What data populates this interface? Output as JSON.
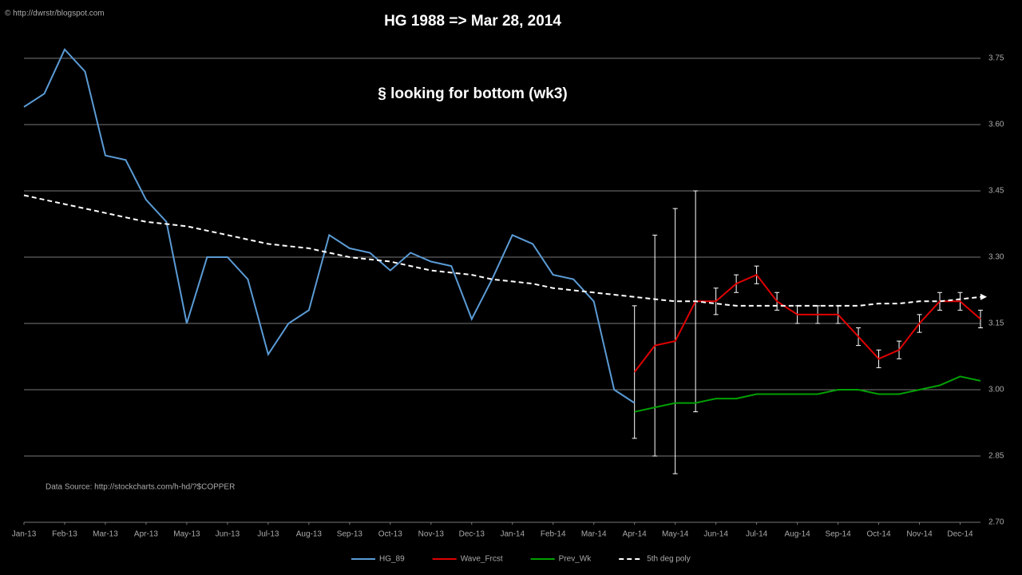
{
  "chart_data": {
    "type": "line",
    "title": "HG 1988 => Mar 28, 2014",
    "subtitle": "§ looking for bottom (wk3)",
    "annotations": [
      "© http://dwrstr/blogspot.com",
      "Data Source: http://stockcharts.com/h-hd/?$COPPER"
    ],
    "x": [
      0,
      0.5,
      1,
      1.5,
      2,
      2.5,
      3,
      3.5,
      4,
      4.5,
      5,
      5.5,
      6,
      6.5,
      7,
      7.5,
      8,
      8.5,
      9,
      9.5,
      10,
      10.5,
      11,
      11.5,
      12,
      12.5,
      13,
      13.5,
      14,
      14.5,
      15,
      15.5,
      16,
      16.5,
      17,
      17.5,
      18,
      18.5,
      19,
      19.5,
      20,
      20.5,
      21,
      21.5,
      22,
      22.5,
      23,
      23.5
    ],
    "xlim": [
      0,
      23.5
    ],
    "xticks": [
      {
        "value": 0,
        "label": "Jan-13"
      },
      {
        "value": 1,
        "label": "Feb-13"
      },
      {
        "value": 2,
        "label": "Mar-13"
      },
      {
        "value": 3,
        "label": "Apr-13"
      },
      {
        "value": 4,
        "label": "May-13"
      },
      {
        "value": 5,
        "label": "Jun-13"
      },
      {
        "value": 6,
        "label": "Jul-13"
      },
      {
        "value": 7,
        "label": "Aug-13"
      },
      {
        "value": 8,
        "label": "Sep-13"
      },
      {
        "value": 9,
        "label": "Oct-13"
      },
      {
        "value": 10,
        "label": "Nov-13"
      },
      {
        "value": 11,
        "label": "Dec-13"
      },
      {
        "value": 12,
        "label": "Jan-14"
      },
      {
        "value": 13,
        "label": "Feb-14"
      },
      {
        "value": 14,
        "label": "Mar-14"
      },
      {
        "value": 15,
        "label": "Apr-14"
      },
      {
        "value": 16,
        "label": "May-14"
      },
      {
        "value": 17,
        "label": "Jun-14"
      },
      {
        "value": 18,
        "label": "Jul-14"
      },
      {
        "value": 19,
        "label": "Aug-14"
      },
      {
        "value": 20,
        "label": "Sep-14"
      },
      {
        "value": 21,
        "label": "Oct-14"
      },
      {
        "value": 22,
        "label": "Nov-14"
      },
      {
        "value": 23,
        "label": "Dec-14"
      }
    ],
    "ylim": [
      2.7,
      3.75
    ],
    "yticks": [
      {
        "value": 2.7,
        "label": "2.70"
      },
      2.85,
      {
        "value": 3.0,
        "label": "3.00"
      },
      3.15,
      {
        "value": 3.3,
        "label": "3.30"
      },
      3.45,
      {
        "value": 3.6,
        "label": "3.60"
      },
      3.75
    ],
    "grid": true,
    "legend": "bottom",
    "series": [
      {
        "name": "HG_89",
        "color": "#5b9bd5",
        "values": [
          3.64,
          3.67,
          3.77,
          3.72,
          3.53,
          3.52,
          3.43,
          3.38,
          3.15,
          3.3,
          3.3,
          3.25,
          3.08,
          3.15,
          3.18,
          3.35,
          3.32,
          3.31,
          3.27,
          3.31,
          3.29,
          3.28,
          3.16,
          3.25,
          3.35,
          3.33,
          3.26,
          3.25,
          3.2,
          3.0,
          2.97,
          null,
          null,
          null,
          null,
          null,
          null,
          null,
          null,
          null,
          null,
          null,
          null,
          null,
          null,
          null,
          null,
          null
        ]
      },
      {
        "name": "Wave_Frcst",
        "color": "#e00000",
        "values": [
          null,
          null,
          null,
          null,
          null,
          null,
          null,
          null,
          null,
          null,
          null,
          null,
          null,
          null,
          null,
          null,
          null,
          null,
          null,
          null,
          null,
          null,
          null,
          null,
          null,
          null,
          null,
          null,
          null,
          null,
          3.04,
          3.1,
          3.11,
          3.2,
          3.2,
          3.24,
          3.26,
          3.2,
          3.17,
          3.17,
          3.17,
          3.12,
          3.07,
          3.09,
          3.15,
          3.2,
          3.2,
          3.16
        ],
        "errors": [
          null,
          null,
          null,
          null,
          null,
          null,
          null,
          null,
          null,
          null,
          null,
          null,
          null,
          null,
          null,
          null,
          null,
          null,
          null,
          null,
          null,
          null,
          null,
          null,
          null,
          null,
          null,
          null,
          null,
          null,
          0.15,
          0.25,
          0.3,
          0.25,
          0.03,
          0.02,
          0.02,
          0.02,
          0.02,
          0.02,
          0.02,
          0.02,
          0.02,
          0.02,
          0.02,
          0.02,
          0.02,
          0.02
        ]
      },
      {
        "name": "Prev_Wk",
        "color": "#00a000",
        "values": [
          null,
          null,
          null,
          null,
          null,
          null,
          null,
          null,
          null,
          null,
          null,
          null,
          null,
          null,
          null,
          null,
          null,
          null,
          null,
          null,
          null,
          null,
          null,
          null,
          null,
          null,
          null,
          null,
          null,
          null,
          2.95,
          2.96,
          2.97,
          2.97,
          2.98,
          2.98,
          2.99,
          2.99,
          2.99,
          2.99,
          3.0,
          3.0,
          2.99,
          2.99,
          3.0,
          3.01,
          3.03,
          3.02
        ]
      },
      {
        "name": "5th deg poly",
        "color": "#ffffff",
        "dashed": true,
        "values": [
          3.44,
          3.43,
          3.42,
          3.41,
          3.4,
          3.39,
          3.38,
          3.375,
          3.37,
          3.36,
          3.35,
          3.34,
          3.33,
          3.325,
          3.32,
          3.31,
          3.3,
          3.295,
          3.29,
          3.28,
          3.27,
          3.265,
          3.26,
          3.25,
          3.245,
          3.24,
          3.23,
          3.225,
          3.22,
          3.215,
          3.21,
          3.205,
          3.2,
          3.2,
          3.195,
          3.19,
          3.19,
          3.19,
          3.19,
          3.19,
          3.19,
          3.19,
          3.195,
          3.195,
          3.2,
          3.2,
          3.205,
          3.21
        ]
      }
    ]
  }
}
